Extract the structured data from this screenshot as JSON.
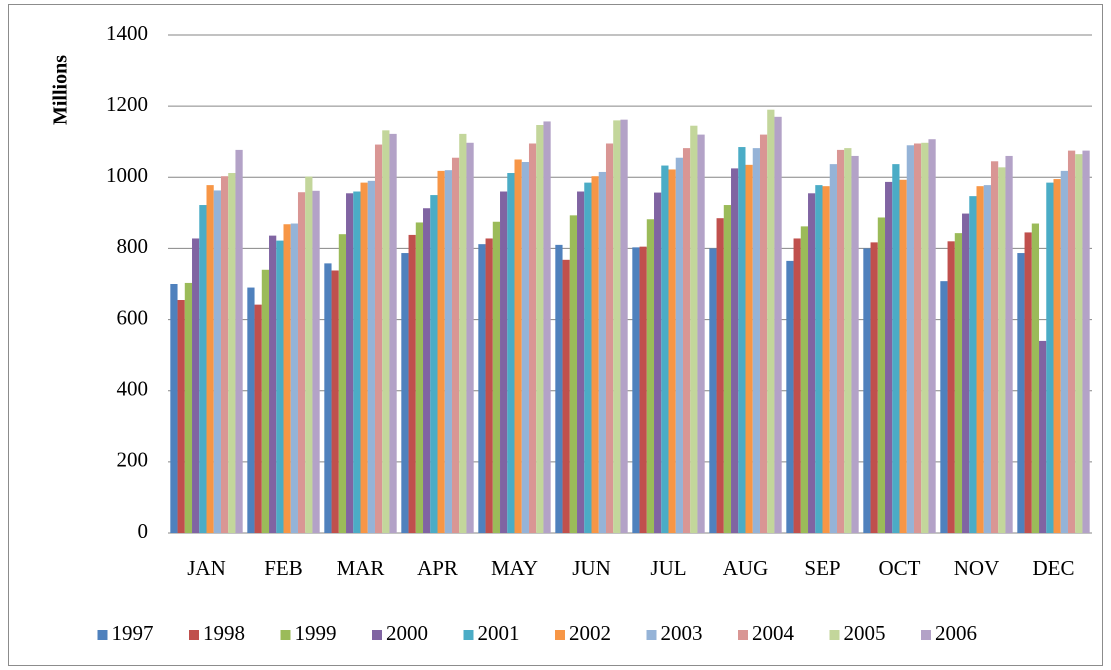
{
  "chart_data": {
    "type": "bar",
    "y_label": "Millions",
    "categories": [
      "JAN",
      "FEB",
      "MAR",
      "APR",
      "MAY",
      "JUN",
      "JUL",
      "AUG",
      "SEP",
      "OCT",
      "NOV",
      "DEC"
    ],
    "series": [
      {
        "name": "1997",
        "color": "#4f81bd",
        "values": [
          700,
          690,
          758,
          787,
          812,
          810,
          803,
          800,
          765,
          800,
          708,
          787
        ]
      },
      {
        "name": "1998",
        "color": "#c0504d",
        "values": [
          655,
          642,
          738,
          838,
          828,
          768,
          805,
          885,
          828,
          817,
          820,
          845
        ]
      },
      {
        "name": "1999",
        "color": "#9bbb59",
        "values": [
          703,
          740,
          840,
          873,
          875,
          893,
          882,
          922,
          862,
          887,
          843,
          870
        ]
      },
      {
        "name": "2000",
        "color": "#8064a2",
        "values": [
          828,
          836,
          955,
          913,
          960,
          960,
          957,
          1025,
          955,
          987,
          898,
          540
        ]
      },
      {
        "name": "2001",
        "color": "#4bacc6",
        "values": [
          922,
          822,
          960,
          950,
          1012,
          985,
          1033,
          1085,
          978,
          1037,
          947,
          985
        ]
      },
      {
        "name": "2002",
        "color": "#f79646",
        "values": [
          978,
          868,
          985,
          1018,
          1050,
          1003,
          1022,
          1035,
          975,
          993,
          975,
          995
        ]
      },
      {
        "name": "2003",
        "color": "#95b3d7",
        "values": [
          963,
          870,
          990,
          1020,
          1043,
          1015,
          1055,
          1082,
          1037,
          1090,
          978,
          1018
        ]
      },
      {
        "name": "2004",
        "color": "#d99694",
        "values": [
          1003,
          958,
          1092,
          1055,
          1095,
          1095,
          1082,
          1120,
          1077,
          1095,
          1045,
          1075
        ]
      },
      {
        "name": "2005",
        "color": "#c3d69b",
        "values": [
          1012,
          1002,
          1132,
          1122,
          1147,
          1160,
          1145,
          1190,
          1082,
          1097,
          1028,
          1065
        ]
      },
      {
        "name": "2006",
        "color": "#b3a2c7",
        "values": [
          1077,
          962,
          1122,
          1097,
          1157,
          1162,
          1120,
          1170,
          1060,
          1107,
          1060,
          1075
        ]
      }
    ],
    "ylim": [
      0,
      1400
    ],
    "yticks": [
      0,
      200,
      400,
      600,
      800,
      1000,
      1200,
      1400
    ],
    "grid": true,
    "legend": "bottom"
  }
}
